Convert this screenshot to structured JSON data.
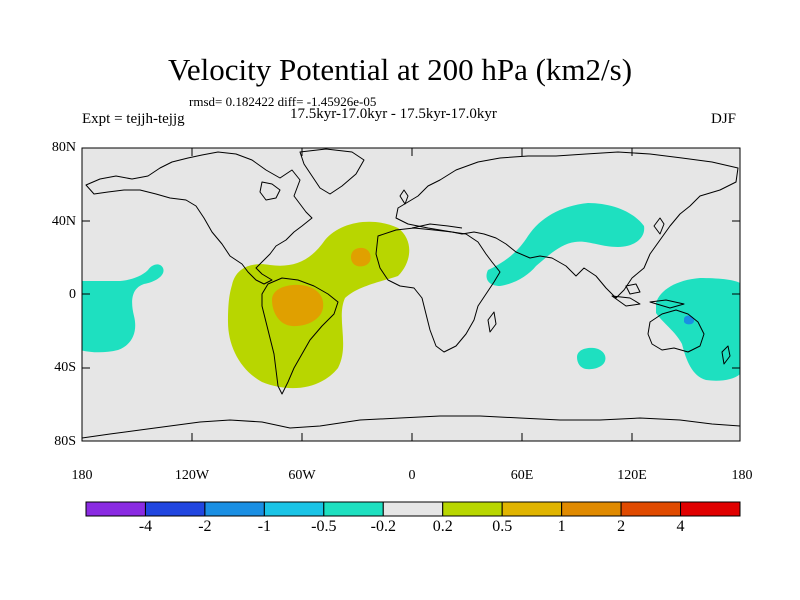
{
  "title": "Velocity Potential at 200 hPa (km2/s)",
  "stats": "rmsd= 0.182422 diff= -1.45926e-05",
  "subtitle": "17.5kyr-17.0kyr - 17.5kyr-17.0kyr",
  "experiment": "Expt = tejjh-tejjg",
  "season": "DJF",
  "axes": {
    "y_ticks": [
      "80N",
      "40N",
      "0",
      "40S",
      "80S"
    ],
    "x_ticks": [
      "180",
      "120W",
      "60W",
      "0",
      "60E",
      "120E",
      "180"
    ]
  },
  "colorbar": {
    "colors": [
      "#8a2be2",
      "#2146e0",
      "#1a8fe3",
      "#1bc4e6",
      "#1ee0c0",
      "#e6e6e6",
      "#b8d600",
      "#e0b400",
      "#e08a00",
      "#e04a00",
      "#e00000"
    ],
    "labels": [
      "-4",
      "-2",
      "-1",
      "-0.5",
      "-0.2",
      "0.2",
      "0.5",
      "1",
      "2",
      "4"
    ]
  },
  "colors": {
    "background_field": "#e6e6e6",
    "positive_weak": "#b8d600",
    "positive_mid": "#e0a000",
    "negative_weak": "#1ee0c0",
    "negative_mid": "#1a8fe3"
  }
}
